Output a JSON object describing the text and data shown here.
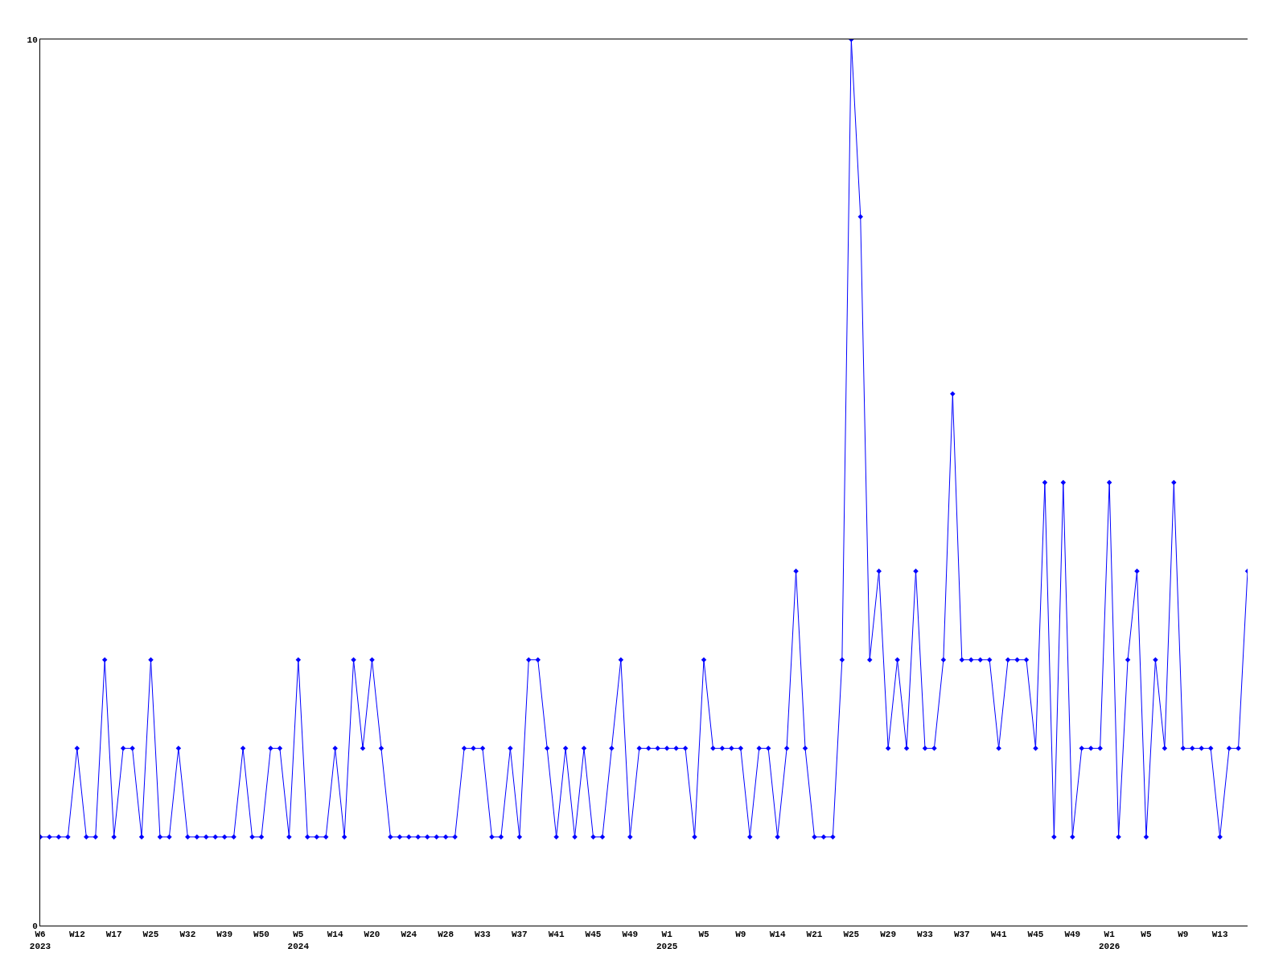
{
  "chart_data": {
    "type": "line",
    "categories": [
      "W6\n2023",
      null,
      null,
      null,
      "W12",
      null,
      null,
      null,
      "W17",
      null,
      null,
      null,
      "W25",
      null,
      null,
      null,
      "W32",
      null,
      null,
      null,
      "W39",
      null,
      null,
      null,
      "W50",
      null,
      null,
      null,
      "W5\n2024",
      null,
      null,
      null,
      "W14",
      null,
      null,
      null,
      "W20",
      null,
      null,
      null,
      "W24",
      null,
      null,
      null,
      "W28",
      null,
      null,
      null,
      "W33",
      null,
      null,
      null,
      "W37",
      null,
      null,
      null,
      "W41",
      null,
      null,
      null,
      "W45",
      null,
      null,
      null,
      "W49",
      null,
      null,
      null,
      "W1\n2025",
      null,
      null,
      null,
      "W5",
      null,
      null,
      null,
      "W9",
      null,
      null,
      null,
      "W14",
      null,
      null,
      null,
      "W21",
      null,
      null,
      null,
      "W25",
      null,
      null,
      null,
      "W29",
      null,
      null,
      null,
      "W33",
      null,
      null,
      null,
      "W37",
      null,
      null,
      null,
      "W41",
      null,
      null,
      null,
      "W45",
      null,
      null,
      null,
      "W49",
      null,
      null,
      null,
      "W1\n2026",
      null,
      null,
      null,
      "W5",
      null,
      null,
      null,
      "W9",
      null,
      null,
      null,
      "W13",
      null,
      null,
      null
    ],
    "series": [
      {
        "color": "#0000ff",
        "values": [
          1,
          1,
          1,
          1,
          2,
          1,
          1,
          3,
          1,
          2,
          2,
          1,
          3,
          1,
          1,
          2,
          1,
          1,
          1,
          1,
          1,
          1,
          2,
          1,
          1,
          2,
          2,
          1,
          3,
          1,
          1,
          1,
          2,
          1,
          3,
          2,
          3,
          2,
          1,
          1,
          1,
          1,
          1,
          1,
          1,
          1,
          2,
          2,
          2,
          1,
          1,
          2,
          1,
          3,
          3,
          2,
          1,
          2,
          1,
          2,
          1,
          1,
          2,
          3,
          1,
          2,
          2,
          2,
          2,
          2,
          2,
          1,
          3,
          2,
          2,
          2,
          2,
          1,
          2,
          2,
          1,
          2,
          4,
          2,
          1,
          1,
          1,
          3,
          10,
          8,
          3,
          4,
          2,
          3,
          2,
          4,
          2,
          2,
          3,
          6,
          3,
          3,
          3,
          3,
          2,
          3,
          3,
          3,
          2,
          5,
          1,
          5,
          1,
          2,
          2,
          2,
          5,
          1,
          3,
          4,
          1,
          3,
          2,
          5,
          2,
          2,
          2,
          2,
          1,
          2,
          2,
          4
        ]
      }
    ],
    "ylim": [
      0,
      10
    ],
    "yticks": [
      0,
      10
    ],
    "grid": false,
    "marker": "diamond",
    "line_style": "solid"
  }
}
